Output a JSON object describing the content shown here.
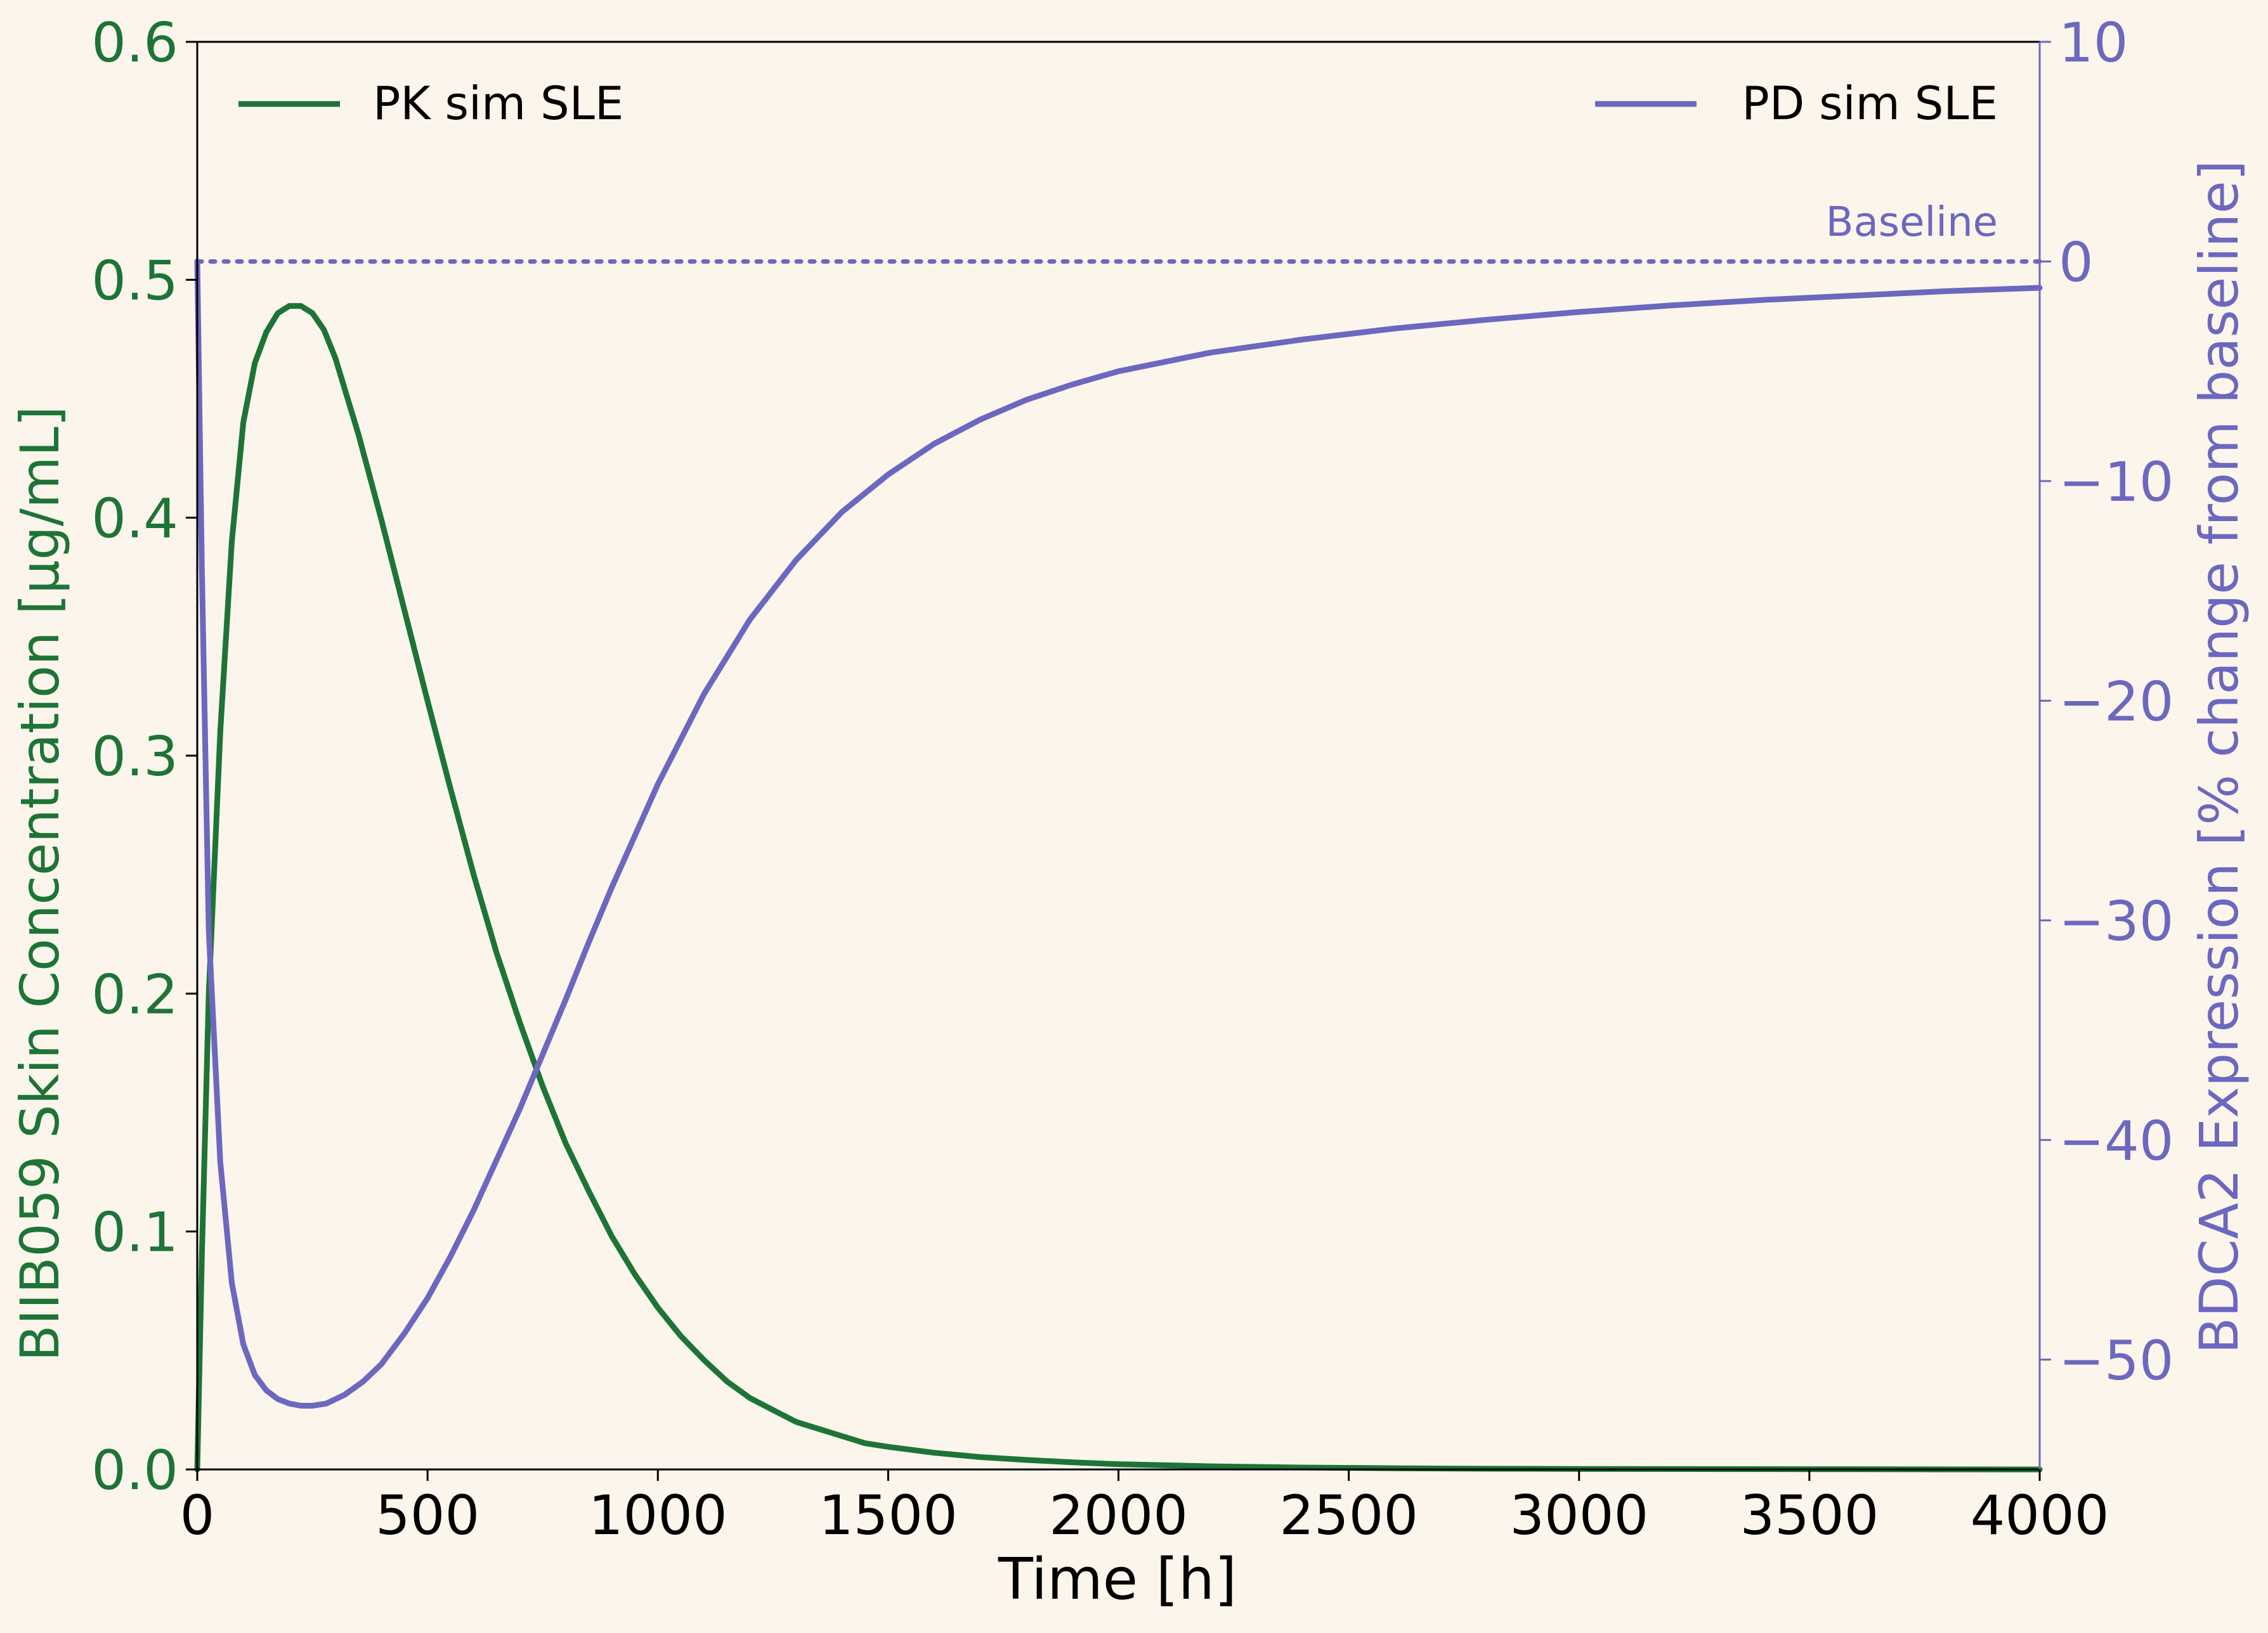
{
  "colors": {
    "background": "#fbf5ec",
    "pk": "#1d7436",
    "pd": "#6c67bf",
    "axis": "#000000"
  },
  "chart_data": {
    "type": "line",
    "xlabel": "Time [h]",
    "ylabel_left": "BIIB059 Skin Concentration [μg/mL]",
    "ylabel_right": "BDCA2 Expression [% change from baseline]",
    "xlim": [
      0,
      4000
    ],
    "ylim_left": [
      0.0,
      0.6
    ],
    "ylim_right": [
      -55,
      10
    ],
    "x_ticks": [
      0,
      500,
      1000,
      1500,
      2000,
      2500,
      3000,
      3500,
      4000
    ],
    "x_tick_labels": [
      "0",
      "500",
      "1000",
      "1500",
      "2000",
      "2500",
      "3000",
      "3500",
      "4000"
    ],
    "y_left_ticks": [
      0.0,
      0.1,
      0.2,
      0.3,
      0.4,
      0.5,
      0.6
    ],
    "y_left_tick_labels": [
      "0.0",
      "0.1",
      "0.2",
      "0.3",
      "0.4",
      "0.5",
      "0.6"
    ],
    "y_right_ticks": [
      -50,
      -40,
      -30,
      -20,
      -10,
      0,
      10
    ],
    "y_right_tick_labels": [
      "−50",
      "−40",
      "−30",
      "−20",
      "−10",
      "0",
      "10"
    ],
    "grid": false,
    "series": [
      {
        "name": "PK sim SLE",
        "axis": "left",
        "legend_position": "upper-left",
        "x": [
          0,
          10,
          25,
          50,
          75,
          100,
          125,
          150,
          175,
          200,
          225,
          250,
          275,
          300,
          350,
          400,
          450,
          500,
          550,
          600,
          650,
          700,
          750,
          800,
          850,
          900,
          950,
          1000,
          1050,
          1100,
          1150,
          1200,
          1250,
          1300,
          1350,
          1400,
          1450,
          1500,
          1600,
          1700,
          1800,
          1900,
          2000,
          2200,
          2400,
          2600,
          2800,
          3000,
          3500,
          4000
        ],
        "y": [
          0.0,
          0.09,
          0.2,
          0.31,
          0.39,
          0.44,
          0.465,
          0.478,
          0.486,
          0.489,
          0.489,
          0.486,
          0.479,
          0.467,
          0.435,
          0.399,
          0.361,
          0.323,
          0.286,
          0.25,
          0.217,
          0.188,
          0.161,
          0.137,
          0.117,
          0.098,
          0.082,
          0.068,
          0.056,
          0.046,
          0.037,
          0.03,
          0.025,
          0.02,
          0.017,
          0.014,
          0.011,
          0.0095,
          0.007,
          0.0052,
          0.004,
          0.003,
          0.0022,
          0.0013,
          0.0008,
          0.0005,
          0.0003,
          0.0002,
          0.0001,
          0.0
        ]
      },
      {
        "name": "PD sim SLE",
        "axis": "right",
        "legend_position": "upper-right",
        "x": [
          0,
          10,
          25,
          50,
          75,
          100,
          125,
          150,
          175,
          200,
          225,
          250,
          280,
          320,
          360,
          400,
          450,
          500,
          550,
          600,
          650,
          700,
          750,
          800,
          850,
          900,
          1000,
          1100,
          1200,
          1300,
          1400,
          1500,
          1600,
          1700,
          1800,
          1900,
          2000,
          2200,
          2400,
          2600,
          2800,
          3000,
          3200,
          3400,
          3600,
          3800,
          4000
        ],
        "y": [
          0,
          -14,
          -30.5,
          -41,
          -46.5,
          -49.3,
          -50.7,
          -51.4,
          -51.8,
          -52.0,
          -52.1,
          -52.1,
          -52.0,
          -51.6,
          -51.0,
          -50.2,
          -48.8,
          -47.2,
          -45.3,
          -43.2,
          -40.9,
          -38.6,
          -36.1,
          -33.6,
          -31.0,
          -28.5,
          -23.8,
          -19.7,
          -16.3,
          -13.6,
          -11.4,
          -9.7,
          -8.3,
          -7.2,
          -6.3,
          -5.6,
          -5.0,
          -4.15,
          -3.55,
          -3.05,
          -2.65,
          -2.3,
          -2.0,
          -1.75,
          -1.55,
          -1.35,
          -1.2
        ]
      }
    ],
    "reference_line": {
      "label": "Baseline",
      "axis": "right",
      "y": 0,
      "style": "dotted"
    }
  }
}
